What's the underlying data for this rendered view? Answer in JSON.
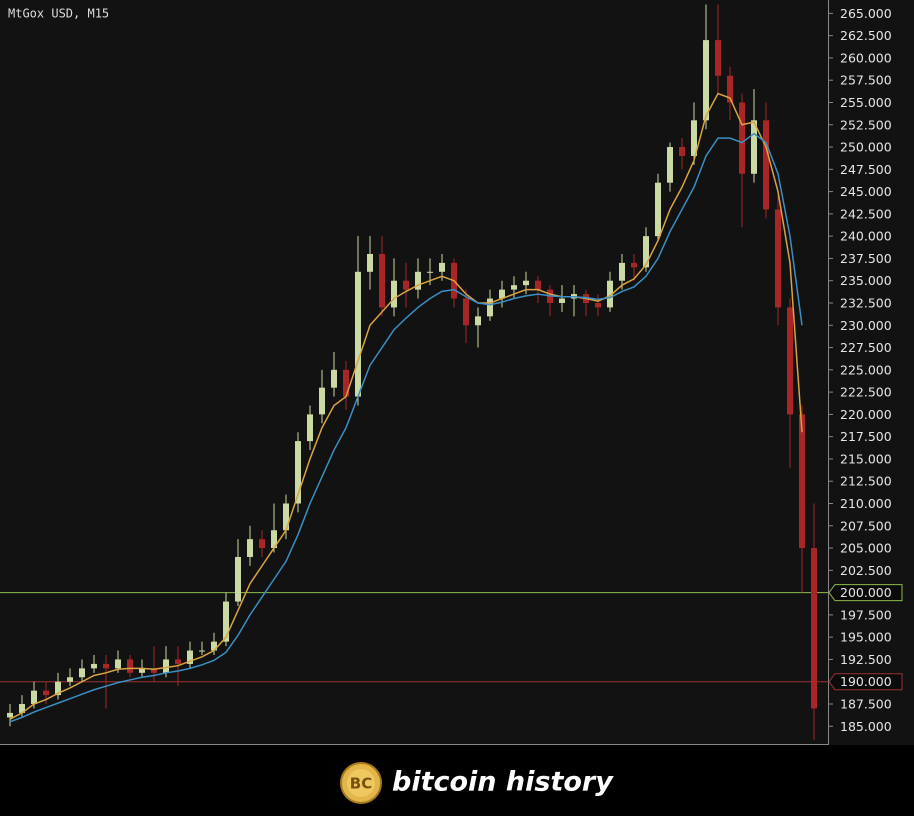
{
  "chart_data": {
    "type": "candlestick",
    "title": "MtGox USD, M15",
    "open": [
      186,
      186.5,
      187.5,
      189,
      188.5,
      190,
      190.5,
      191.5,
      192,
      191.5,
      192.5,
      191,
      191.5,
      191,
      192.5,
      192,
      193.5,
      193.5,
      194.5,
      199,
      204,
      206,
      205,
      207,
      210,
      217,
      220,
      223,
      225,
      222,
      236,
      238,
      232,
      235,
      234,
      236,
      236,
      237,
      233,
      230,
      231,
      233,
      234,
      234.5,
      235,
      234,
      232.5,
      233,
      233.5,
      232.5,
      232,
      235,
      237,
      236.5,
      240,
      246,
      250,
      249,
      253,
      262,
      258,
      255,
      247,
      253,
      243,
      232,
      220,
      205
    ],
    "high": [
      187.5,
      188.5,
      190,
      190,
      191,
      191.5,
      192.5,
      193,
      193,
      193.5,
      193,
      192.5,
      194,
      194,
      194,
      194.5,
      194.5,
      195.5,
      200,
      206,
      207.5,
      207,
      210,
      211,
      218,
      221,
      225,
      227,
      226,
      240,
      240,
      240,
      237.5,
      237,
      237.5,
      237.5,
      238,
      237.5,
      234,
      232,
      234,
      235,
      235.5,
      236,
      235.5,
      234.5,
      234.5,
      234.5,
      234,
      233.5,
      236,
      238,
      238,
      241,
      247,
      250.5,
      251,
      255,
      266,
      266,
      259,
      256,
      256.5,
      255,
      245,
      233,
      221,
      210
    ],
    "low": [
      185,
      186,
      187,
      187.5,
      188,
      189.5,
      190,
      191,
      187,
      191,
      190.5,
      190.5,
      190,
      190.5,
      189.5,
      191.5,
      193,
      193,
      194,
      198.5,
      203,
      204,
      204.5,
      206,
      209,
      216,
      219,
      222,
      220.5,
      221,
      234,
      231,
      231,
      232,
      233,
      234.5,
      235,
      232,
      228,
      227.5,
      230.5,
      232,
      233,
      233.5,
      232.5,
      231,
      231.5,
      231,
      231,
      231,
      231.5,
      234,
      235,
      236,
      239.5,
      245,
      247.5,
      248,
      252,
      256,
      253,
      241,
      246,
      242,
      230,
      214,
      200,
      183.5
    ],
    "close": [
      186.5,
      187.5,
      189,
      188.5,
      190,
      190.5,
      191.5,
      192,
      191.5,
      192.5,
      191,
      191.5,
      191,
      192.5,
      192,
      193.5,
      193.5,
      194.5,
      199,
      204,
      206,
      205,
      207,
      210,
      217,
      220,
      223,
      225,
      222,
      236,
      238,
      232,
      235,
      234,
      236,
      236,
      237,
      233,
      230,
      231,
      233,
      234,
      234.5,
      235,
      234,
      232.5,
      233,
      233.5,
      232.5,
      232,
      235,
      237,
      236.5,
      240,
      246,
      250,
      249,
      253,
      262,
      258,
      255,
      247,
      253,
      243,
      232,
      220,
      205,
      187
    ],
    "up_color": "#cbd9a2",
    "down_color": "#a82626",
    "lines": [
      {
        "color": "#d9a441",
        "values": [
          185.8,
          186.5,
          187.5,
          188,
          188.7,
          189.3,
          190,
          190.7,
          191,
          191.4,
          191.5,
          191.5,
          191.4,
          191.6,
          191.8,
          192.3,
          192.8,
          193.5,
          195,
          198,
          201,
          203,
          205,
          207,
          211,
          215,
          218.5,
          221,
          222,
          226,
          230,
          231.5,
          233,
          233.8,
          234.5,
          235,
          235.5,
          235,
          233.5,
          232.5,
          232.5,
          233,
          233.5,
          234,
          234,
          233.5,
          233.2,
          233.2,
          233,
          232.7,
          233.3,
          234.5,
          235.2,
          236.8,
          239.5,
          243,
          245.5,
          248.5,
          253.5,
          256,
          255.5,
          252.5,
          252.8,
          250,
          245,
          237,
          218,
          null
        ]
      },
      {
        "color": "#3b8fc4",
        "values": [
          185.5,
          186,
          186.6,
          187.1,
          187.6,
          188.1,
          188.6,
          189.1,
          189.5,
          189.9,
          190.2,
          190.5,
          190.7,
          191,
          191.2,
          191.5,
          191.9,
          192.4,
          193.3,
          195.2,
          197.5,
          199.5,
          201.5,
          203.5,
          206.5,
          210,
          213,
          216,
          218.5,
          222,
          225.5,
          227.5,
          229.5,
          230.8,
          232,
          233,
          233.8,
          234,
          233.2,
          232.5,
          232.3,
          232.6,
          233,
          233.3,
          233.5,
          233.3,
          233.2,
          233.2,
          233.1,
          232.9,
          233.1,
          233.8,
          234.3,
          235.5,
          237.5,
          240.5,
          243,
          245.5,
          249,
          251,
          251,
          250.5,
          251.5,
          250.5,
          247,
          240,
          230,
          null
        ]
      }
    ],
    "levels": [
      {
        "value": 200,
        "color": "#8dbb4c"
      },
      {
        "value": 190,
        "color": "#9c3030"
      }
    ],
    "ylim": [
      182.9,
      266.5
    ],
    "yticks": [
      {
        "value": 185,
        "label": "185.000"
      },
      {
        "value": 187.5,
        "label": "187.500"
      },
      {
        "value": 190,
        "label": "190.000"
      },
      {
        "value": 192.5,
        "label": "192.500"
      },
      {
        "value": 195,
        "label": "195.000"
      },
      {
        "value": 197.5,
        "label": "197.500"
      },
      {
        "value": 200,
        "label": "200.000"
      },
      {
        "value": 202.5,
        "label": "202.500"
      },
      {
        "value": 205,
        "label": "205.000"
      },
      {
        "value": 207.5,
        "label": "207.500"
      },
      {
        "value": 210,
        "label": "210.000"
      },
      {
        "value": 212.5,
        "label": "212.500"
      },
      {
        "value": 215,
        "label": "215.000"
      },
      {
        "value": 217.5,
        "label": "217.500"
      },
      {
        "value": 220,
        "label": "220.000"
      },
      {
        "value": 222.5,
        "label": "222.500"
      },
      {
        "value": 225,
        "label": "225.000"
      },
      {
        "value": 227.5,
        "label": "227.500"
      },
      {
        "value": 230,
        "label": "230.000"
      },
      {
        "value": 232.5,
        "label": "232.500"
      },
      {
        "value": 235,
        "label": "235.000"
      },
      {
        "value": 237.5,
        "label": "237.500"
      },
      {
        "value": 240,
        "label": "240.000"
      },
      {
        "value": 242.5,
        "label": "242.500"
      },
      {
        "value": 245,
        "label": "245.000"
      },
      {
        "value": 247.5,
        "label": "247.500"
      },
      {
        "value": 250,
        "label": "250.000"
      },
      {
        "value": 252.5,
        "label": "252.500"
      },
      {
        "value": 255,
        "label": "255.000"
      },
      {
        "value": 257.5,
        "label": "257.500"
      },
      {
        "value": 260,
        "label": "260.000"
      },
      {
        "value": 262.5,
        "label": "262.500"
      },
      {
        "value": 265,
        "label": "265.000"
      }
    ]
  },
  "footer": {
    "logo_text": "BC",
    "text": "bitcoin history"
  }
}
